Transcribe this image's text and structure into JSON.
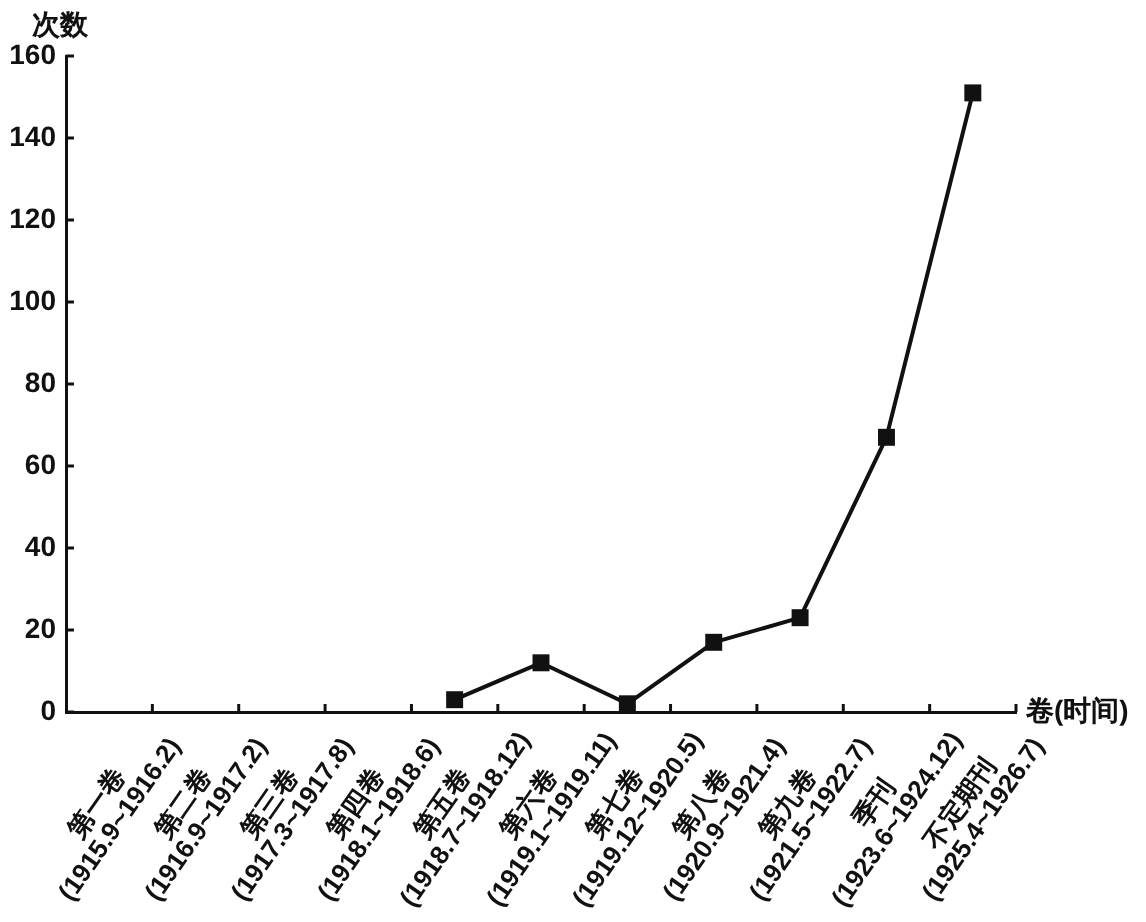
{
  "chart_data": {
    "type": "line",
    "categories": [
      "第一卷\n(1915.9~1916.2)",
      "第二卷\n(1916.9~1917.2)",
      "第三卷\n(1917.3~1917.8)",
      "第四卷\n(1918.1~1918.6)",
      "第五卷\n(1918.7~1918.12)",
      "第六卷\n(1919.1~1919.11)",
      "第七卷\n(1919.12~1920.5)",
      "第八卷\n(1920.9~1921.4)",
      "第九卷\n(1921.5~1922.7)",
      "季刊\n(1923.6~1924.12)",
      "不定期刊\n(1925.4~1926.7)"
    ],
    "values": [
      null,
      null,
      null,
      null,
      3,
      12,
      2,
      17,
      23,
      67,
      151
    ],
    "color": "#111111",
    "ylim": [
      0,
      160
    ],
    "yticks": [
      0,
      20,
      40,
      60,
      80,
      100,
      120,
      140,
      160
    ],
    "xlabel": "卷(时间)",
    "ylabel": "次数",
    "grid": false,
    "legend": false,
    "marker": "square",
    "line_style": "solid"
  }
}
